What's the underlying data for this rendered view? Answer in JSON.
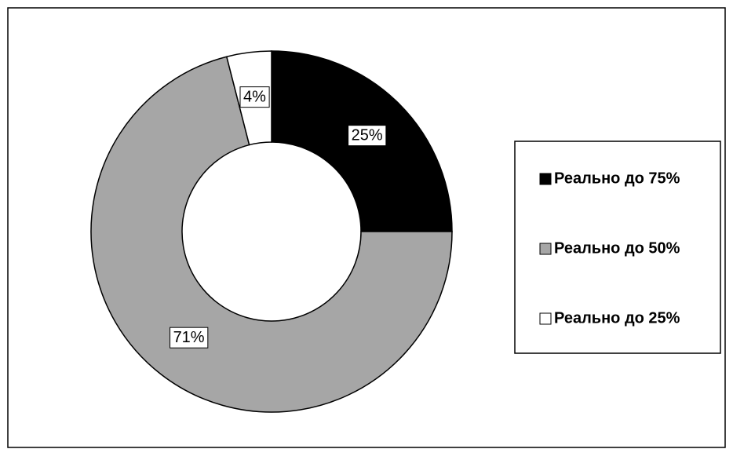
{
  "chart_data": {
    "type": "donut",
    "categories": [
      "Реально до 75%",
      "Реально до 50%",
      "Реально до 25%"
    ],
    "values": [
      25,
      71,
      4
    ],
    "value_labels": [
      "25%",
      "71%",
      "4%"
    ],
    "colors": [
      "#000000",
      "#a6a6a6",
      "#ffffff"
    ],
    "legend": "right"
  }
}
